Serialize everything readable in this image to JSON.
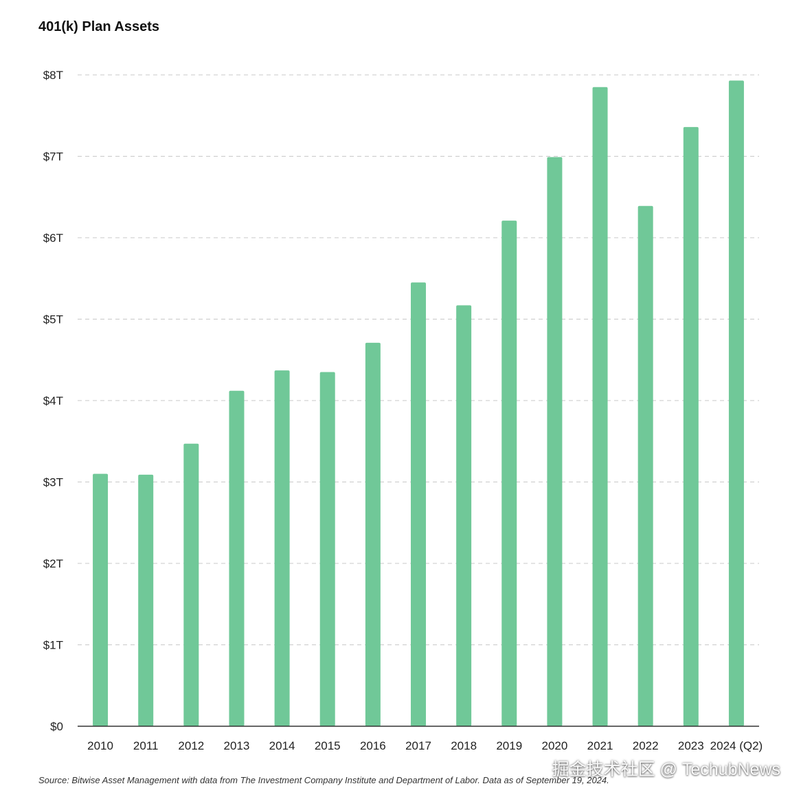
{
  "chart_data": {
    "type": "bar",
    "title": "401(k) Plan Assets",
    "xlabel": "",
    "ylabel": "",
    "categories": [
      "2010",
      "2011",
      "2012",
      "2013",
      "2014",
      "2015",
      "2016",
      "2017",
      "2018",
      "2019",
      "2020",
      "2021",
      "2022",
      "2023",
      "2024 (Q2)"
    ],
    "values": [
      3.1,
      3.09,
      3.47,
      4.12,
      4.37,
      4.35,
      4.71,
      5.45,
      5.17,
      6.21,
      6.99,
      7.85,
      6.39,
      7.36,
      7.93
    ],
    "ylim": [
      0,
      8
    ],
    "yticks": [
      0,
      1,
      2,
      3,
      4,
      5,
      6,
      7,
      8
    ],
    "ytick_labels": [
      "$0",
      "$1T",
      "$2T",
      "$3T",
      "$4T",
      "$5T",
      "$6T",
      "$7T",
      "$8T"
    ],
    "grid": true,
    "legend": "none",
    "bar_color": "#70c898",
    "gridline_color": "#c8c8c8"
  },
  "source_note": "Source: Bitwise Asset Management with data from The Investment Company Institute and Department of Labor. Data as of September 19, 2024.",
  "watermark": "掘金技术社区 @ TechubNews"
}
